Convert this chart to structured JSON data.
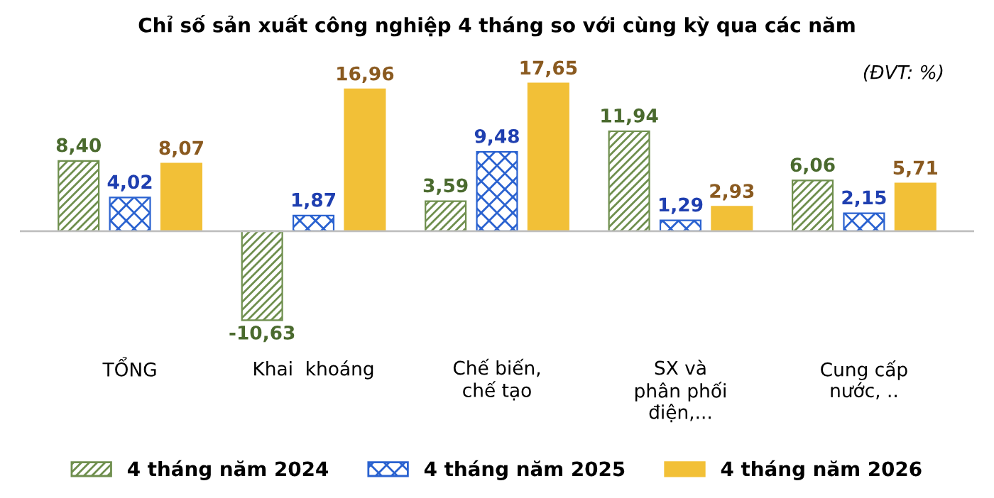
{
  "chart_data": {
    "type": "bar",
    "title": "Chỉ số sản xuất công nghiệp 4 tháng so với cùng kỳ qua các năm",
    "annotations": [
      "(ĐVT: %)"
    ],
    "categories": [
      "TỔNG",
      "Khai  khoáng",
      "Chế biến,\nchế tạo",
      "SX và\nphân phối\nđiện,...",
      "Cung cấp\nnước, .."
    ],
    "series": [
      {
        "name": "4 tháng năm 2024",
        "color": "#6f8f4e",
        "values": [
          8.4,
          -10.63,
          3.59,
          11.94,
          6.06
        ],
        "value_labels": [
          "8,40",
          "-10,63",
          "3,59",
          "11,94",
          "6,06"
        ]
      },
      {
        "name": "4 tháng năm 2025",
        "color": "#2a62d0",
        "values": [
          4.02,
          1.87,
          9.48,
          1.29,
          2.15
        ],
        "value_labels": [
          "4,02",
          "1,87",
          "9,48",
          "1,29",
          "2,15"
        ]
      },
      {
        "name": "4 tháng năm 2026",
        "color": "#f2c037",
        "values": [
          8.07,
          16.96,
          17.65,
          2.93,
          5.71
        ],
        "value_labels": [
          "8,07",
          "16,96",
          "17,65",
          "2,93",
          "5,71"
        ]
      }
    ],
    "grid": false,
    "legend": "bottom"
  }
}
